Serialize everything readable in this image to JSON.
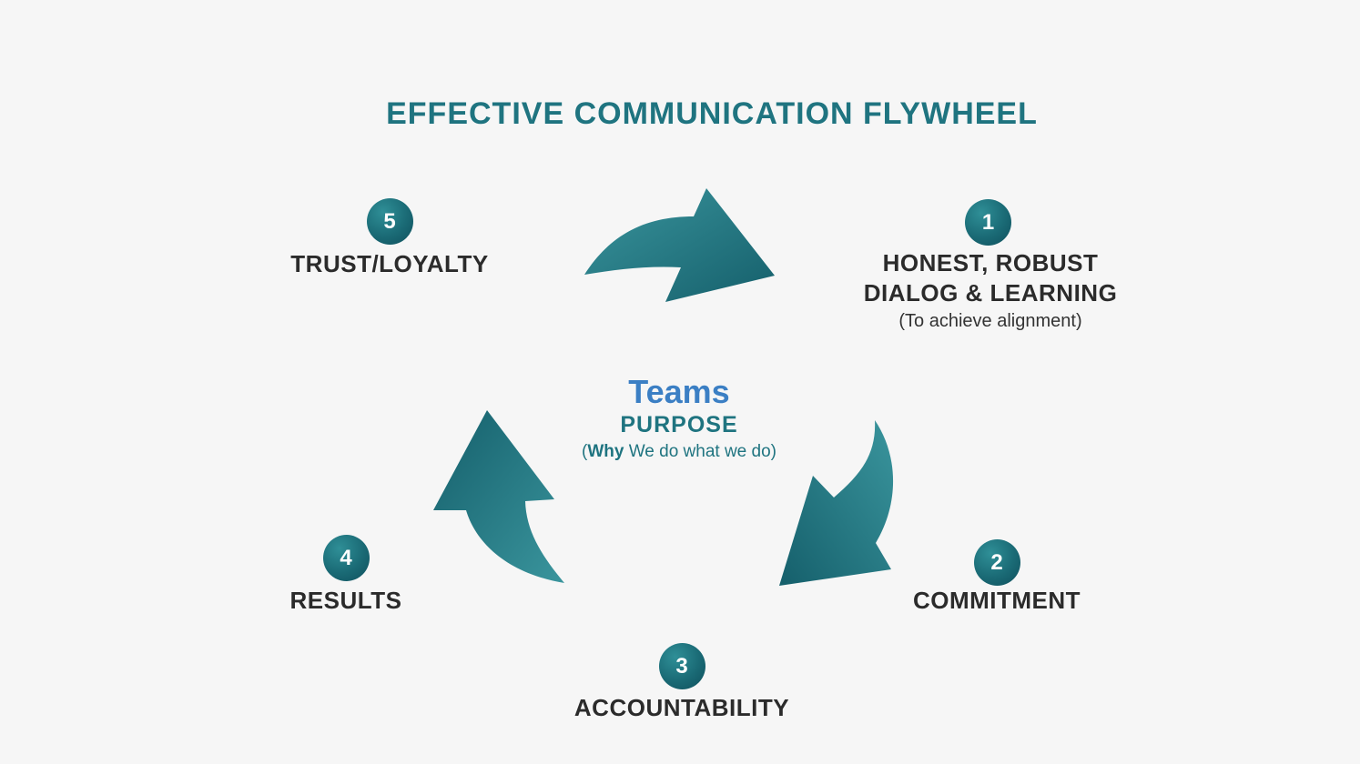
{
  "title": "EFFECTIVE COMMUNICATION FLYWHEEL",
  "colors": {
    "background": "#f6f6f6",
    "teal": "#1f7480",
    "teal_dark": "#0f4f5c",
    "teal_light": "#3a959d",
    "teams_blue": "#3b7fc4",
    "label": "#2b2b2b"
  },
  "center": {
    "teams": "Teams",
    "purpose": "PURPOSE",
    "why_open": "(",
    "why_bold": "Why",
    "why_rest": " We do what we do)"
  },
  "steps": [
    {
      "number": "1",
      "label_line1": "HONEST, ROBUST",
      "label_line2": "DIALOG & LEARNING",
      "sub": "(To achieve alignment)"
    },
    {
      "number": "2",
      "label": "COMMITMENT"
    },
    {
      "number": "3",
      "label": "ACCOUNTABILITY"
    },
    {
      "number": "4",
      "label": "RESULTS"
    },
    {
      "number": "5",
      "label": "TRUST/LOYALTY"
    }
  ],
  "arrow_icons": [
    "curved-arrow-right",
    "curved-arrow-down-left",
    "curved-arrow-up"
  ]
}
